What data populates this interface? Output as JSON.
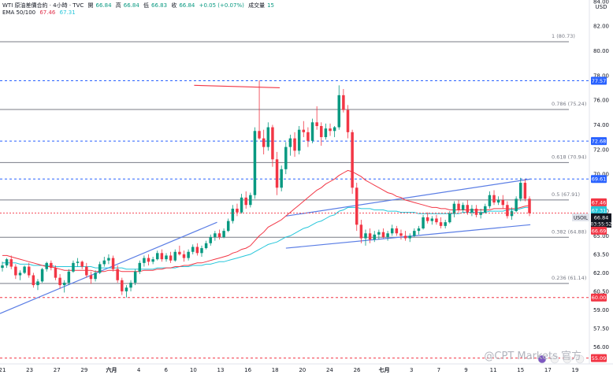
{
  "header": {
    "symbol": "WTI 原油差價合約 · 4小時 · TVC",
    "open_label": "開",
    "open": "66.84",
    "high_label": "高",
    "high": "66.84",
    "low_label": "低",
    "low": "66.83",
    "close_label": "收",
    "close": "66.84",
    "change": "+0.05 (+0.07%)",
    "volume_label": "成交量",
    "volume": "15",
    "ema_label": "EMA 50/100",
    "ema50": "67.46",
    "ema100": "67.31"
  },
  "currency": "USD",
  "watermark": "@CPT Markets 官方",
  "colors": {
    "up": "#089981",
    "down": "#f23645",
    "ema50": "#f23645",
    "ema100": "#26c6da",
    "trendline": "#5b7ee5",
    "fib": "#787b86",
    "level_blue": "#2962ff",
    "level_red": "#f23645",
    "price_tag": "#131722",
    "axis_text": "#131722"
  },
  "chart_data": {
    "type": "candlestick",
    "title": "WTI 原油差價合約 · 4小時 · TVC",
    "ylim": [
      55.0,
      84.5
    ],
    "y_ticks": [
      "84.00",
      "82.00",
      "80.00",
      "78.00",
      "76.00",
      "74.00",
      "72.00",
      "70.00",
      "67.00",
      "65.00",
      "63.50",
      "62.00",
      "60.50",
      "59.00",
      "57.50",
      "56.00"
    ],
    "x_ticks": [
      "21",
      "23",
      "27",
      "29",
      "六月",
      "4",
      "6",
      "10",
      "13",
      "16",
      "18",
      "20",
      "24",
      "26",
      "七月",
      "3",
      "7",
      "9",
      "11",
      "15",
      "17",
      "19"
    ],
    "fib_levels": [
      {
        "label": "1 (80.73)",
        "value": 80.73
      },
      {
        "label": "0.786 (75.24)",
        "value": 75.24
      },
      {
        "label": "0.618 (70.94)",
        "value": 70.94
      },
      {
        "label": "0.5 (67.91)",
        "value": 67.91
      },
      {
        "label": "0.382 (64.88)",
        "value": 64.88
      },
      {
        "label": "0.236 (61.14)",
        "value": 61.14
      }
    ],
    "horizontal_levels": [
      {
        "value": 77.57,
        "label": "77.57",
        "color": "blue"
      },
      {
        "value": 72.68,
        "label": "72.68",
        "color": "blue"
      },
      {
        "value": 69.61,
        "label": "69.61",
        "color": "blue"
      },
      {
        "value": 60.0,
        "label": "60.00",
        "color": "red"
      },
      {
        "value": 55.09,
        "label": "55.09",
        "color": "red"
      }
    ],
    "price_tags": [
      {
        "value": 67.46,
        "label": "67.46",
        "color": "red"
      },
      {
        "value": 67.31,
        "label": "67.31",
        "color": "cyan"
      },
      {
        "value": 66.84,
        "label": "66.84",
        "label2": "03:55:52",
        "prefix": "USOIL",
        "color": "dark"
      },
      {
        "value": 66.69,
        "label": "66.69",
        "color": "red"
      }
    ],
    "trendlines": [
      {
        "name": "support-line-1",
        "from": [
          0.0,
          58.7
        ],
        "to": [
          0.246,
          66.1
        ],
        "color": "blue"
      },
      {
        "name": "resistance-top",
        "from": [
          0.22,
          77.2
        ],
        "to": [
          0.317,
          77.0
        ],
        "color": "red"
      },
      {
        "name": "channel-upper",
        "from": [
          0.324,
          66.6
        ],
        "to": [
          0.601,
          69.6
        ],
        "color": "blue"
      },
      {
        "name": "channel-lower",
        "from": [
          0.324,
          64.0
        ],
        "to": [
          0.601,
          65.9
        ],
        "color": "blue"
      }
    ],
    "candles": [
      [
        62.4,
        62.9,
        62.1,
        62.6
      ],
      [
        62.6,
        63.2,
        62.4,
        63.1
      ],
      [
        63.1,
        63.4,
        62.3,
        62.5
      ],
      [
        62.5,
        62.7,
        61.5,
        61.8
      ],
      [
        61.8,
        62.2,
        61.4,
        62.0
      ],
      [
        62.0,
        62.6,
        61.9,
        62.5
      ],
      [
        62.5,
        62.8,
        61.6,
        61.8
      ],
      [
        61.8,
        62.0,
        60.8,
        61.0
      ],
      [
        61.0,
        61.5,
        60.6,
        61.3
      ],
      [
        61.3,
        62.4,
        61.2,
        62.3
      ],
      [
        62.3,
        62.9,
        62.1,
        62.8
      ],
      [
        62.8,
        63.0,
        62.2,
        62.4
      ],
      [
        62.4,
        62.6,
        61.4,
        61.6
      ],
      [
        61.6,
        61.9,
        60.7,
        61.0
      ],
      [
        61.0,
        61.4,
        60.4,
        61.2
      ],
      [
        61.2,
        62.3,
        61.0,
        62.1
      ],
      [
        62.1,
        63.0,
        62.0,
        62.8
      ],
      [
        62.8,
        63.2,
        62.5,
        62.9
      ],
      [
        62.9,
        63.0,
        62.3,
        62.5
      ],
      [
        62.5,
        62.8,
        61.6,
        61.8
      ],
      [
        61.8,
        62.1,
        61.1,
        61.5
      ],
      [
        61.5,
        62.2,
        61.3,
        62.0
      ],
      [
        62.0,
        62.9,
        61.9,
        62.7
      ],
      [
        62.7,
        63.3,
        62.5,
        63.0
      ],
      [
        63.0,
        63.5,
        62.7,
        63.2
      ],
      [
        63.2,
        63.4,
        62.1,
        62.3
      ],
      [
        62.3,
        62.6,
        61.2,
        61.4
      ],
      [
        61.4,
        61.6,
        60.2,
        60.5
      ],
      [
        60.5,
        61.0,
        60.0,
        60.8
      ],
      [
        60.8,
        61.4,
        60.5,
        61.2
      ],
      [
        61.2,
        62.3,
        61.0,
        62.1
      ],
      [
        62.1,
        63.0,
        61.9,
        62.8
      ],
      [
        62.8,
        63.4,
        62.5,
        63.2
      ],
      [
        63.2,
        63.5,
        62.6,
        62.9
      ],
      [
        62.9,
        63.3,
        62.7,
        63.1
      ],
      [
        63.1,
        63.8,
        63.0,
        63.6
      ],
      [
        63.6,
        63.9,
        62.9,
        63.1
      ],
      [
        63.1,
        63.6,
        62.9,
        63.4
      ],
      [
        63.4,
        63.7,
        62.8,
        63.0
      ],
      [
        63.0,
        63.9,
        62.9,
        63.7
      ],
      [
        63.7,
        64.2,
        63.4,
        63.5
      ],
      [
        63.5,
        63.8,
        62.9,
        63.2
      ],
      [
        63.2,
        63.9,
        63.0,
        63.7
      ],
      [
        63.7,
        64.3,
        63.5,
        64.1
      ],
      [
        64.1,
        64.4,
        63.4,
        63.6
      ],
      [
        63.6,
        64.2,
        63.3,
        64.0
      ],
      [
        64.0,
        64.6,
        63.9,
        64.4
      ],
      [
        64.4,
        65.1,
        64.2,
        64.9
      ],
      [
        64.9,
        65.4,
        64.6,
        65.2
      ],
      [
        65.2,
        65.5,
        64.7,
        64.9
      ],
      [
        64.9,
        65.6,
        64.8,
        65.4
      ],
      [
        65.4,
        66.4,
        65.3,
        66.2
      ],
      [
        66.2,
        67.5,
        66.0,
        67.2
      ],
      [
        67.2,
        67.6,
        66.6,
        66.9
      ],
      [
        66.9,
        68.4,
        66.8,
        68.1
      ],
      [
        68.1,
        68.6,
        67.2,
        67.5
      ],
      [
        67.5,
        68.5,
        67.3,
        68.3
      ],
      [
        68.3,
        73.8,
        68.0,
        73.5
      ],
      [
        73.5,
        77.6,
        72.8,
        72.9
      ],
      [
        72.9,
        73.6,
        71.6,
        72.2
      ],
      [
        72.2,
        74.2,
        71.9,
        73.8
      ],
      [
        73.8,
        74.0,
        70.6,
        71.2
      ],
      [
        71.2,
        71.8,
        68.3,
        68.9
      ],
      [
        68.9,
        70.7,
        68.6,
        70.4
      ],
      [
        70.4,
        72.6,
        70.0,
        72.2
      ],
      [
        72.2,
        73.2,
        71.5,
        72.9
      ],
      [
        72.9,
        73.4,
        71.4,
        71.9
      ],
      [
        71.9,
        73.9,
        71.6,
        73.6
      ],
      [
        73.6,
        74.3,
        73.0,
        73.4
      ],
      [
        73.4,
        73.8,
        72.2,
        72.7
      ],
      [
        72.7,
        74.5,
        72.5,
        74.2
      ],
      [
        74.2,
        75.5,
        73.6,
        73.9
      ],
      [
        73.9,
        74.2,
        72.3,
        73.0
      ],
      [
        73.0,
        74.1,
        72.8,
        73.7
      ],
      [
        73.7,
        74.1,
        73.1,
        73.5
      ],
      [
        73.5,
        73.9,
        73.0,
        73.8
      ],
      [
        73.8,
        77.2,
        73.6,
        76.4
      ],
      [
        76.4,
        76.9,
        75.0,
        75.2
      ],
      [
        75.2,
        75.6,
        72.9,
        73.4
      ],
      [
        73.4,
        73.6,
        68.4,
        68.9
      ],
      [
        68.9,
        69.3,
        65.4,
        65.9
      ],
      [
        65.9,
        66.3,
        64.4,
        64.8
      ],
      [
        64.8,
        65.5,
        64.2,
        65.2
      ],
      [
        65.2,
        65.6,
        64.4,
        64.7
      ],
      [
        64.7,
        65.4,
        64.5,
        65.1
      ],
      [
        65.1,
        65.5,
        64.7,
        65.3
      ],
      [
        65.3,
        65.6,
        64.8,
        64.9
      ],
      [
        64.9,
        65.4,
        64.6,
        65.2
      ],
      [
        65.2,
        65.9,
        65.0,
        65.6
      ],
      [
        65.6,
        65.8,
        65.0,
        65.2
      ],
      [
        65.2,
        65.5,
        64.7,
        65.0
      ],
      [
        65.0,
        65.4,
        64.6,
        64.8
      ],
      [
        64.8,
        65.2,
        64.5,
        65.0
      ],
      [
        65.0,
        65.6,
        64.9,
        65.4
      ],
      [
        65.4,
        65.8,
        65.1,
        65.6
      ],
      [
        65.6,
        66.7,
        65.5,
        66.5
      ],
      [
        66.5,
        66.9,
        66.0,
        66.2
      ],
      [
        66.2,
        66.6,
        65.9,
        66.4
      ],
      [
        66.4,
        66.7,
        65.9,
        66.1
      ],
      [
        66.1,
        66.5,
        65.6,
        65.8
      ],
      [
        65.8,
        66.3,
        65.6,
        66.1
      ],
      [
        66.1,
        67.0,
        66.0,
        66.8
      ],
      [
        66.8,
        67.8,
        66.5,
        67.6
      ],
      [
        67.6,
        67.9,
        66.9,
        67.1
      ],
      [
        67.1,
        67.7,
        66.9,
        67.5
      ],
      [
        67.5,
        67.9,
        66.7,
        66.9
      ],
      [
        66.9,
        67.5,
        66.6,
        67.2
      ],
      [
        67.2,
        67.5,
        66.5,
        66.7
      ],
      [
        66.7,
        67.2,
        66.4,
        66.9
      ],
      [
        66.9,
        67.6,
        66.8,
        67.4
      ],
      [
        67.4,
        68.6,
        67.2,
        68.3
      ],
      [
        68.3,
        68.7,
        67.5,
        67.7
      ],
      [
        67.7,
        68.2,
        67.5,
        67.9
      ],
      [
        67.9,
        68.3,
        67.2,
        67.5
      ],
      [
        67.5,
        67.8,
        66.4,
        66.6
      ],
      [
        66.6,
        67.3,
        66.3,
        67.0
      ],
      [
        67.0,
        68.2,
        66.9,
        68.0
      ],
      [
        68.0,
        69.7,
        67.8,
        69.3
      ],
      [
        69.3,
        69.6,
        67.8,
        68.0
      ],
      [
        68.0,
        68.2,
        66.6,
        66.84
      ]
    ],
    "ema50": [
      63.4,
      63.4,
      63.3,
      63.2,
      63.1,
      63.0,
      62.9,
      62.8,
      62.7,
      62.6,
      62.5,
      62.5,
      62.4,
      62.3,
      62.2,
      62.2,
      62.2,
      62.2,
      62.2,
      62.2,
      62.2,
      62.1,
      62.1,
      62.1,
      62.2,
      62.2,
      62.2,
      62.1,
      62.1,
      62.1,
      62.1,
      62.1,
      62.2,
      62.2,
      62.2,
      62.3,
      62.3,
      62.4,
      62.4,
      62.5,
      62.5,
      62.6,
      62.6,
      62.7,
      62.8,
      62.8,
      62.9,
      63.0,
      63.1,
      63.2,
      63.3,
      63.4,
      63.6,
      63.7,
      63.9,
      64.0,
      64.2,
      64.6,
      65.0,
      65.3,
      65.7,
      65.9,
      66.1,
      66.3,
      66.6,
      66.9,
      67.2,
      67.5,
      67.8,
      68.1,
      68.4,
      68.7,
      68.9,
      69.2,
      69.4,
      69.6,
      69.9,
      70.1,
      70.3,
      70.2,
      70.0,
      69.8,
      69.5,
      69.3,
      69.1,
      68.9,
      68.7,
      68.5,
      68.4,
      68.2,
      68.1,
      67.9,
      67.8,
      67.7,
      67.6,
      67.5,
      67.4,
      67.3,
      67.3,
      67.2,
      67.2,
      67.1,
      67.1,
      67.1,
      67.1,
      67.1,
      67.1,
      67.1,
      67.1,
      67.1,
      67.1,
      67.2,
      67.2,
      67.2,
      67.2,
      67.2,
      67.2,
      67.3,
      67.4,
      67.46
    ],
    "ema100": [
      62.8,
      62.8,
      62.8,
      62.8,
      62.7,
      62.7,
      62.7,
      62.6,
      62.6,
      62.6,
      62.6,
      62.6,
      62.5,
      62.5,
      62.5,
      62.5,
      62.5,
      62.5,
      62.5,
      62.5,
      62.5,
      62.4,
      62.4,
      62.4,
      62.4,
      62.4,
      62.4,
      62.4,
      62.3,
      62.3,
      62.3,
      62.3,
      62.3,
      62.3,
      62.3,
      62.4,
      62.4,
      62.4,
      62.4,
      62.4,
      62.5,
      62.5,
      62.5,
      62.6,
      62.6,
      62.6,
      62.7,
      62.7,
      62.8,
      62.9,
      62.9,
      63.0,
      63.1,
      63.2,
      63.3,
      63.4,
      63.5,
      63.7,
      63.9,
      64.1,
      64.3,
      64.4,
      64.5,
      64.7,
      64.9,
      65.0,
      65.2,
      65.4,
      65.6,
      65.7,
      65.9,
      66.1,
      66.2,
      66.4,
      66.6,
      66.7,
      67.0,
      67.1,
      67.3,
      67.3,
      67.3,
      67.2,
      67.2,
      67.2,
      67.1,
      67.1,
      67.1,
      67.0,
      67.0,
      67.0,
      66.9,
      66.9,
      66.9,
      66.9,
      66.8,
      66.8,
      66.8,
      66.8,
      66.8,
      66.8,
      66.8,
      66.8,
      66.8,
      66.8,
      66.9,
      66.9,
      66.9,
      66.9,
      66.9,
      66.9,
      67.0,
      67.0,
      67.0,
      67.0,
      67.1,
      67.1,
      67.1,
      67.2,
      67.3,
      67.31
    ]
  }
}
